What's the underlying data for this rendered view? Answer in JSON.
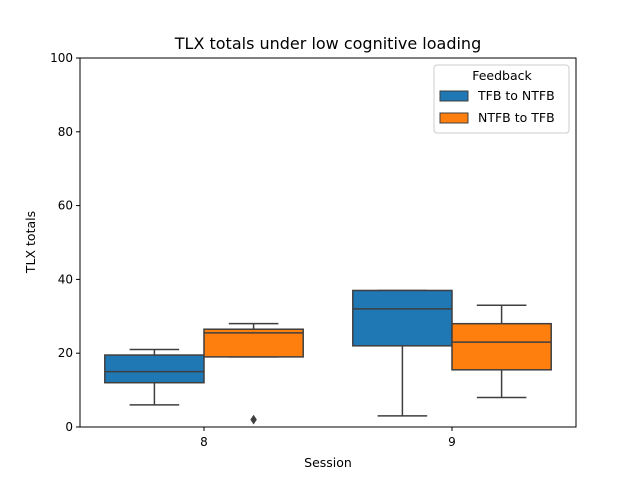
{
  "chart_data": {
    "type": "box",
    "title": "TLX totals under low cognitive loading",
    "xlabel": "Session",
    "ylabel": "TLX totals",
    "ylim": [
      0,
      100
    ],
    "yticks": [
      "0",
      "20",
      "40",
      "60",
      "80",
      "100"
    ],
    "categories": [
      "8",
      "9"
    ],
    "legend": {
      "title": "Feedback",
      "placement": "top-right"
    },
    "grid": false,
    "series": [
      {
        "name": "TFB to NTFB",
        "color": "#1f77b4",
        "boxes": [
          {
            "category": "8",
            "whisker_low": 6,
            "q1": 12,
            "median": 15,
            "q3": 19.5,
            "whisker_high": 21,
            "outliers": []
          },
          {
            "category": "9",
            "whisker_low": 3,
            "q1": 22,
            "median": 32,
            "q3": 37,
            "whisker_high": 37,
            "outliers": []
          }
        ]
      },
      {
        "name": "NTFB to TFB",
        "color": "#ff7f0e",
        "boxes": [
          {
            "category": "8",
            "whisker_low": 19,
            "q1": 19,
            "median": 25.5,
            "q3": 26.5,
            "whisker_high": 28,
            "outliers": [
              2
            ]
          },
          {
            "category": "9",
            "whisker_low": 8,
            "q1": 15.5,
            "median": 23,
            "q3": 28,
            "whisker_high": 33,
            "outliers": []
          }
        ]
      }
    ]
  }
}
